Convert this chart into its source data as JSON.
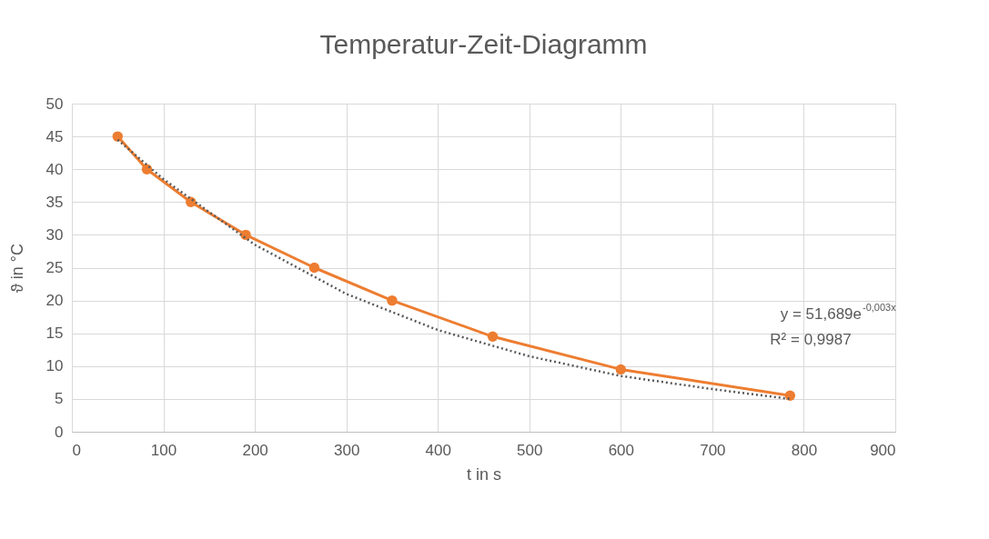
{
  "chart_data": {
    "type": "line",
    "title": "Temperatur-Zeit-Diagramm",
    "xlabel": "t in s",
    "ylabel": "ϑ in °C",
    "xlim": [
      0,
      900
    ],
    "xticks": [
      0,
      100,
      200,
      300,
      400,
      500,
      600,
      700,
      800,
      900
    ],
    "ylim": [
      0,
      50
    ],
    "yticks": [
      0,
      5,
      10,
      15,
      20,
      25,
      30,
      35,
      40,
      45,
      50
    ],
    "grid": true,
    "series": [
      {
        "color": "#ed7d31",
        "marker": "circle",
        "line_style": "solid",
        "x": [
          50,
          82,
          130,
          190,
          265,
          350,
          460,
          600,
          785
        ],
        "values": [
          45,
          40,
          35,
          30,
          25,
          20,
          14.5,
          9.5,
          5.5
        ]
      },
      {
        "color": "#595959",
        "marker": "none",
        "line_style": "dotted",
        "x": [
          50,
          100,
          200,
          300,
          400,
          500,
          600,
          700,
          785
        ],
        "values": [
          44.5,
          38.5,
          28.5,
          21,
          15.5,
          11.5,
          8.5,
          6.5,
          5
        ]
      }
    ],
    "annotations": [
      "y = 51,689e$^{-0,003x}$",
      "R² = 0,9987"
    ]
  }
}
